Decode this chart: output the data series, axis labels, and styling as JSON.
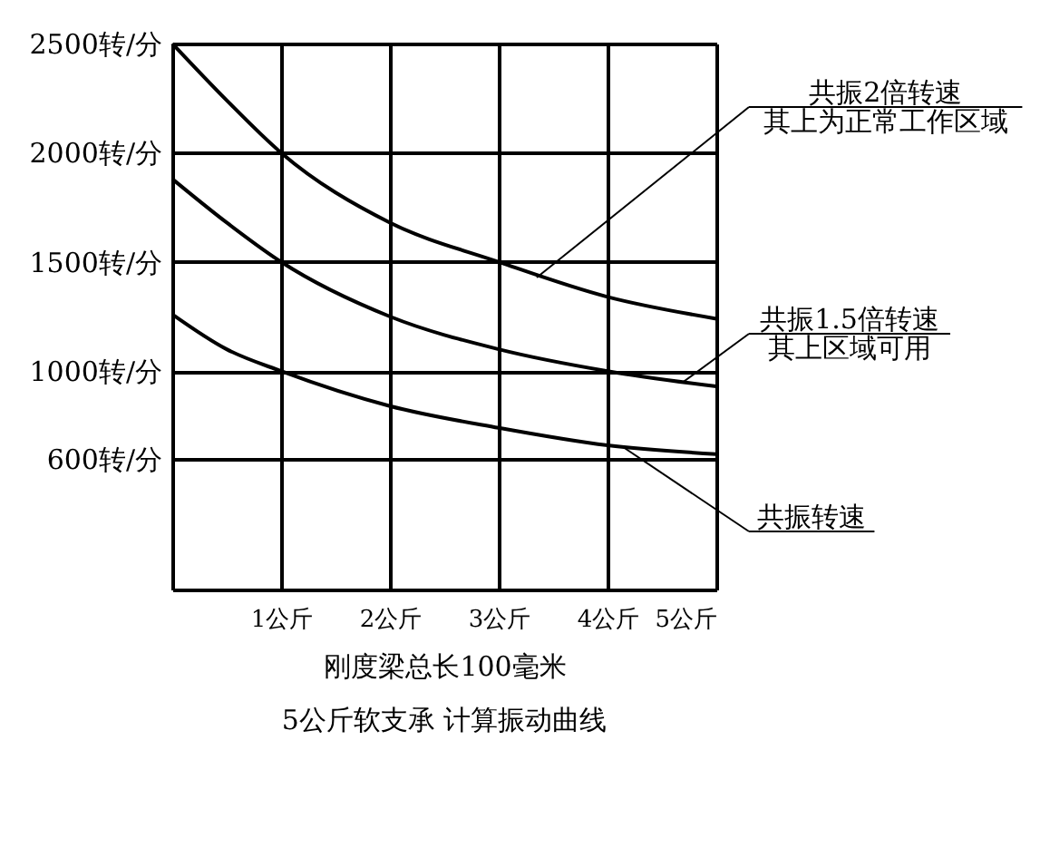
{
  "chart_data": {
    "type": "line",
    "x": [
      0,
      0.5,
      1,
      2,
      3,
      4,
      5
    ],
    "series": [
      {
        "color": "#000000",
        "values": [
          2500,
          2240,
          2000,
          1680,
          1500,
          1340,
          1240
        ]
      },
      {
        "color": "#000000",
        "values": [
          1880,
          1680,
          1500,
          1250,
          1100,
          1000,
          930
        ]
      },
      {
        "color": "#000000",
        "values": [
          1260,
          1100,
          1000,
          840,
          740,
          660,
          620
        ]
      }
    ],
    "xlim": [
      0,
      5
    ],
    "ylim": [
      0,
      2500
    ],
    "xticks": [
      {
        "value": 1,
        "label": "1公斤"
      },
      {
        "value": 2,
        "label": "2公斤"
      },
      {
        "value": 3,
        "label": "3公斤"
      },
      {
        "value": 4,
        "label": "4公斤"
      },
      {
        "value": 5,
        "label": "5公斤"
      }
    ],
    "yticks": [
      {
        "value": 600,
        "label": "600转/分"
      },
      {
        "value": 1000,
        "label": "1000转/分"
      },
      {
        "value": 1500,
        "label": "1500转/分"
      },
      {
        "value": 2000,
        "label": "2000转/分"
      },
      {
        "value": 2500,
        "label": "2500转/分"
      }
    ],
    "xlabel": "刚度梁总长100毫米",
    "grid": true,
    "annotations": [
      "共振2倍转速",
      "其上为正常工作区域",
      {
        "text": "共振1.5倍转速",
        "x": 4.7,
        "y": 952
      },
      "其上区域可用",
      {
        "text": "共振转速",
        "x": 4.15,
        "y": 650
      },
      "5公斤软支承 计算振动曲线"
    ]
  }
}
